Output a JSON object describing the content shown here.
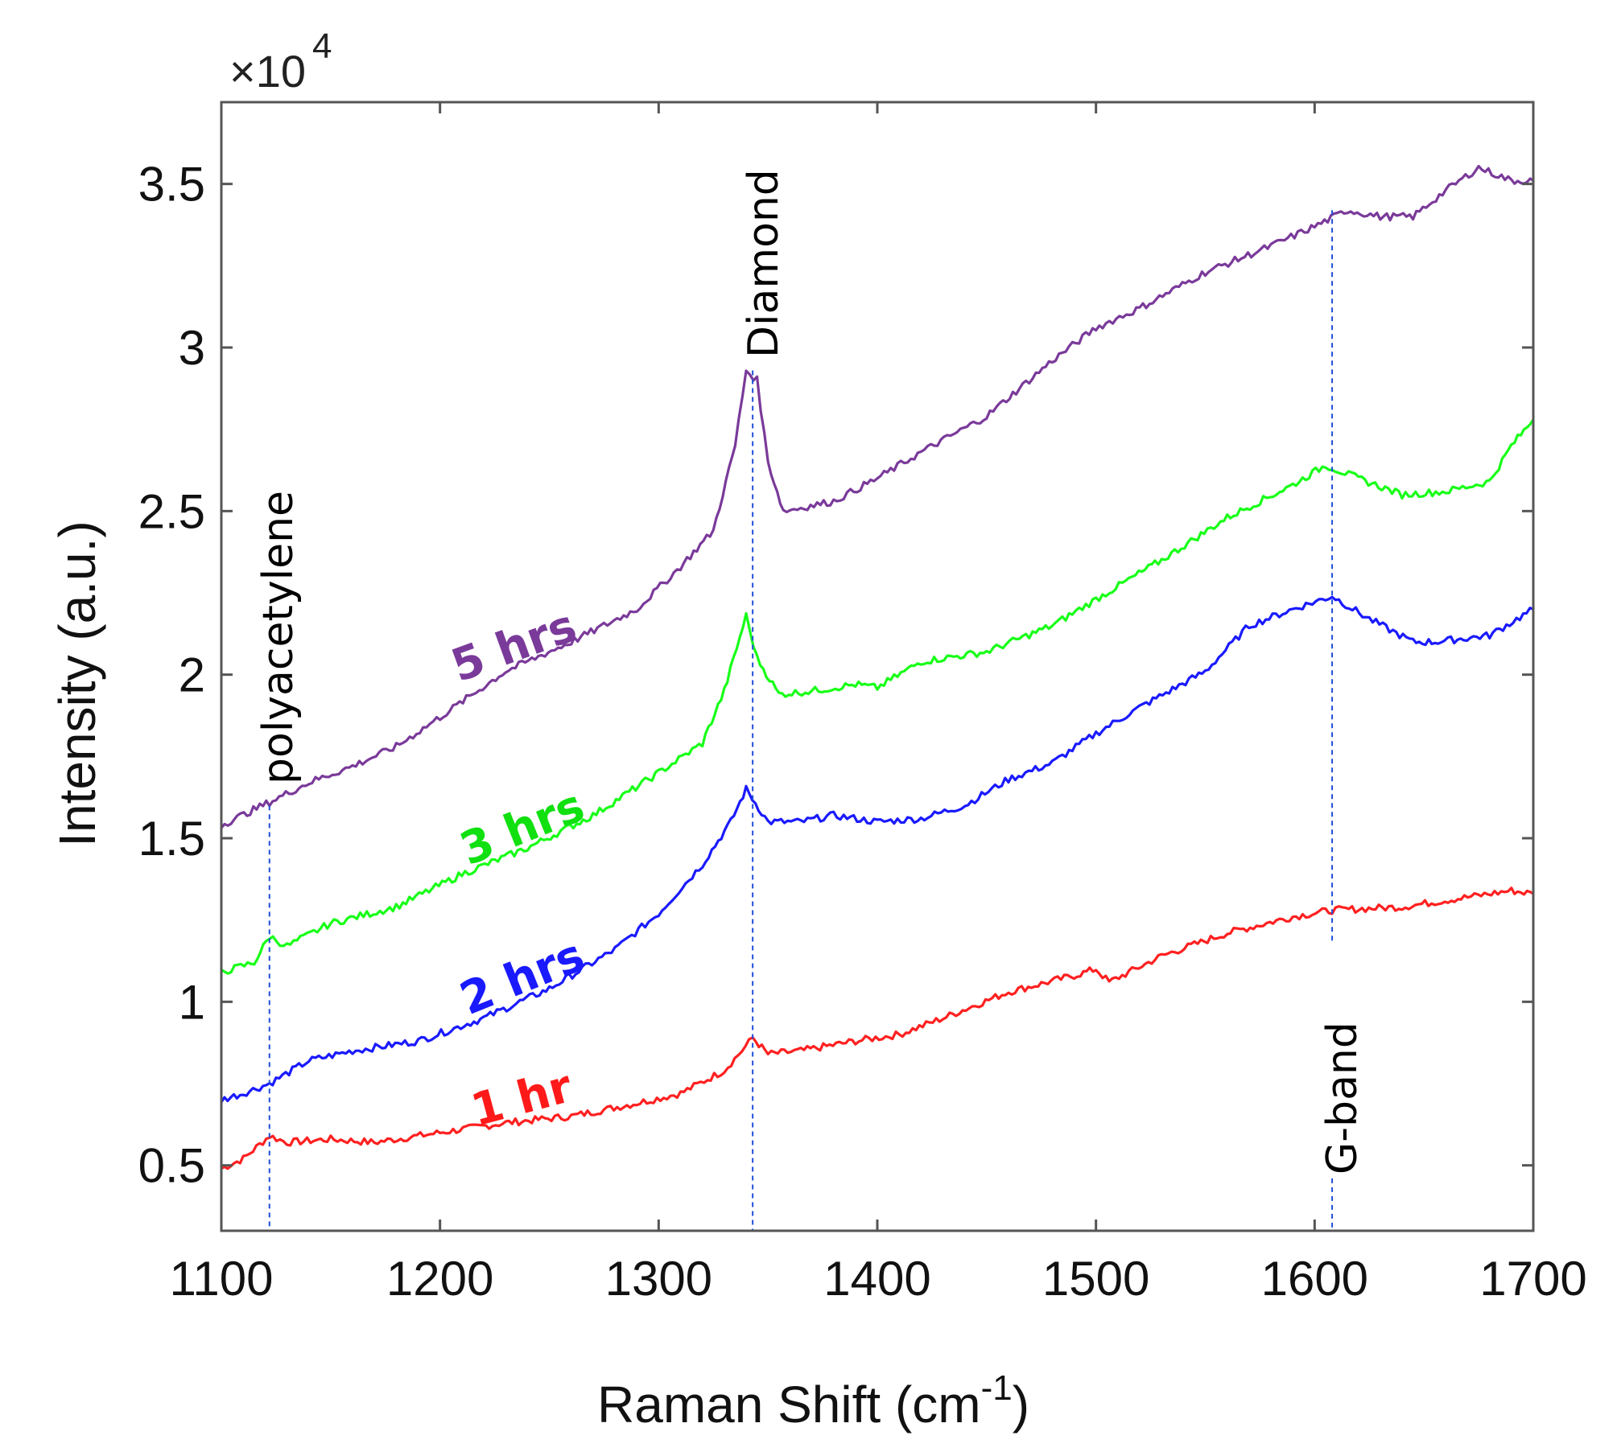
{
  "chart_data": {
    "type": "line",
    "xlabel_main": "Raman Shift (cm",
    "xlabel_sup": "-1",
    "xlabel_close": ")",
    "ylabel": "Intensity (a.u.)",
    "y_multiplier_prefix": "×10",
    "y_multiplier_exp": "4",
    "xlim": [
      1100,
      1700
    ],
    "ylim": [
      0.3,
      3.75
    ],
    "x_ticks": [
      "1100",
      "1200",
      "1300",
      "1400",
      "1500",
      "1600",
      "1700"
    ],
    "y_ticks": [
      "0.5",
      "1",
      "1.5",
      "2",
      "2.5",
      "3",
      "3.5"
    ],
    "grid": false,
    "annotations": [
      {
        "text": "Diamond",
        "x": 1343
      },
      {
        "text": "polyacetylene",
        "x": 1122
      },
      {
        "text": "G-band",
        "x": 1608
      }
    ],
    "series": [
      {
        "name": "1 hr",
        "color": "#ff2020",
        "x": [
          1100,
          1110,
          1122,
          1130,
          1150,
          1170,
          1200,
          1230,
          1260,
          1290,
          1310,
          1330,
          1338,
          1343,
          1350,
          1365,
          1390,
          1410,
          1430,
          1460,
          1490,
          1500,
          1506,
          1530,
          1560,
          1590,
          1608,
          1640,
          1670,
          1690,
          1700
        ],
        "y": [
          0.49,
          0.52,
          0.59,
          0.57,
          0.58,
          0.57,
          0.6,
          0.63,
          0.65,
          0.69,
          0.72,
          0.79,
          0.85,
          0.89,
          0.84,
          0.85,
          0.88,
          0.9,
          0.95,
          1.03,
          1.08,
          1.1,
          1.06,
          1.14,
          1.21,
          1.26,
          1.28,
          1.29,
          1.32,
          1.34,
          1.33
        ]
      },
      {
        "name": "2 hrs",
        "color": "#1a1aff",
        "x": [
          1100,
          1110,
          1122,
          1140,
          1160,
          1190,
          1220,
          1250,
          1280,
          1300,
          1320,
          1333,
          1340,
          1350,
          1365,
          1380,
          1400,
          1420,
          1440,
          1460,
          1480,
          1500,
          1520,
          1550,
          1570,
          1590,
          1608,
          1625,
          1645,
          1655,
          1680,
          1700
        ],
        "y": [
          0.7,
          0.72,
          0.75,
          0.82,
          0.85,
          0.88,
          0.95,
          1.04,
          1.16,
          1.27,
          1.42,
          1.55,
          1.65,
          1.55,
          1.55,
          1.57,
          1.55,
          1.56,
          1.6,
          1.68,
          1.73,
          1.82,
          1.9,
          2.01,
          2.15,
          2.2,
          2.24,
          2.17,
          2.1,
          2.1,
          2.12,
          2.2
        ]
      },
      {
        "name": "3 hrs",
        "color": "#18ff18",
        "x": [
          1100,
          1115,
          1122,
          1130,
          1150,
          1180,
          1210,
          1240,
          1270,
          1300,
          1320,
          1330,
          1340,
          1345,
          1355,
          1370,
          1390,
          1400,
          1420,
          1450,
          1480,
          1500,
          1530,
          1560,
          1590,
          1605,
          1620,
          1640,
          1660,
          1680,
          1690,
          1700
        ],
        "y": [
          1.09,
          1.12,
          1.2,
          1.17,
          1.24,
          1.29,
          1.39,
          1.47,
          1.57,
          1.7,
          1.79,
          1.95,
          2.18,
          2.05,
          1.94,
          1.95,
          1.97,
          1.96,
          2.04,
          2.07,
          2.15,
          2.23,
          2.35,
          2.48,
          2.58,
          2.64,
          2.6,
          2.55,
          2.56,
          2.59,
          2.7,
          2.78
        ]
      },
      {
        "name": "5 hrs",
        "color": "#7a3a9a",
        "x": [
          1100,
          1122,
          1140,
          1160,
          1180,
          1200,
          1230,
          1260,
          1290,
          1310,
          1325,
          1335,
          1340,
          1345,
          1350,
          1357,
          1365,
          1380,
          1400,
          1420,
          1450,
          1480,
          1500,
          1520,
          1550,
          1580,
          1600,
          1615,
          1630,
          1645,
          1660,
          1675,
          1690,
          1700
        ],
        "y": [
          1.54,
          1.61,
          1.67,
          1.72,
          1.78,
          1.87,
          2.01,
          2.1,
          2.2,
          2.33,
          2.44,
          2.7,
          2.93,
          2.9,
          2.65,
          2.5,
          2.51,
          2.53,
          2.6,
          2.68,
          2.79,
          2.96,
          3.06,
          3.12,
          3.23,
          3.31,
          3.37,
          3.42,
          3.4,
          3.4,
          3.48,
          3.55,
          3.51,
          3.51
        ]
      }
    ]
  }
}
